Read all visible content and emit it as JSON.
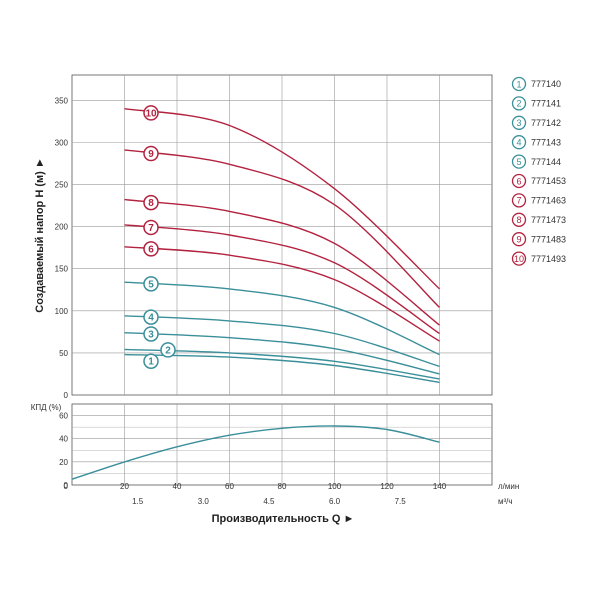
{
  "chart_data": [
    {
      "type": "line",
      "ylabel": "Создаваемый напор H (м) ►",
      "ylim": [
        0,
        380
      ],
      "yticks": [
        "0",
        "50",
        "100",
        "150",
        "200",
        "250",
        "300",
        "350"
      ],
      "xlim": [
        0,
        160
      ],
      "grid": true,
      "legend_position": "right",
      "series": [
        {
          "name": "777140",
          "marker": "1",
          "color": "#3a8f9a",
          "x": [
            20,
            60,
            100,
            140
          ],
          "y": [
            48,
            45,
            35,
            15
          ]
        },
        {
          "name": "777141",
          "marker": "2",
          "color": "#3a8f9a",
          "x": [
            20,
            60,
            100,
            140
          ],
          "y": [
            54,
            50,
            40,
            19
          ]
        },
        {
          "name": "777142",
          "marker": "3",
          "color": "#3a8f9a",
          "x": [
            20,
            60,
            100,
            140
          ],
          "y": [
            74,
            68,
            55,
            25
          ]
        },
        {
          "name": "777143",
          "marker": "4",
          "color": "#3a8f9a",
          "x": [
            20,
            60,
            100,
            140
          ],
          "y": [
            94,
            88,
            73,
            34
          ]
        },
        {
          "name": "777144",
          "marker": "5",
          "color": "#3a8f9a",
          "x": [
            20,
            60,
            100,
            140
          ],
          "y": [
            134,
            126,
            104,
            48
          ]
        },
        {
          "name": "7771453",
          "marker": "6",
          "color": "#b3223f",
          "x": [
            20,
            60,
            100,
            140
          ],
          "y": [
            176,
            166,
            137,
            64
          ]
        },
        {
          "name": "7771463",
          "marker": "7",
          "color": "#b3223f",
          "x": [
            20,
            60,
            100,
            140
          ],
          "y": [
            202,
            190,
            157,
            73
          ]
        },
        {
          "name": "7771473",
          "marker": "8",
          "color": "#b3223f",
          "x": [
            20,
            60,
            100,
            140
          ],
          "y": [
            232,
            218,
            180,
            83
          ]
        },
        {
          "name": "7771483",
          "marker": "9",
          "color": "#b3223f",
          "x": [
            20,
            60,
            100,
            140
          ],
          "y": [
            291,
            274,
            226,
            104
          ]
        },
        {
          "name": "7771493",
          "marker": "10",
          "color": "#b3223f",
          "x": [
            20,
            60,
            100,
            140
          ],
          "y": [
            340,
            320,
            245,
            126
          ]
        }
      ]
    },
    {
      "type": "line",
      "ylabel": "КПД (%)",
      "ylim": [
        0,
        70
      ],
      "yticks": [
        "0",
        "20",
        "40",
        "60"
      ],
      "xlim": [
        0,
        160
      ],
      "grid": true,
      "series": [
        {
          "name": "",
          "color": "#3a8f9a",
          "x": [
            0,
            20,
            40,
            60,
            80,
            100,
            120,
            140
          ],
          "y": [
            5,
            20,
            33,
            43,
            49,
            51,
            48,
            37
          ]
        }
      ]
    }
  ],
  "x_axis": {
    "title": "Производительность Q ►",
    "lpm_ticks": [
      "0",
      "20",
      "40",
      "60",
      "80",
      "100",
      "120",
      "140"
    ],
    "lpm_unit": "л/мин",
    "m3h_ticks": [
      "1.5",
      "3.0",
      "4.5",
      "6.0",
      "7.5"
    ],
    "m3h_unit": "м³/ч"
  },
  "colors": {
    "teal": "#3a8f9a",
    "crimson": "#b3223f",
    "grid": "#9a9a9a"
  }
}
